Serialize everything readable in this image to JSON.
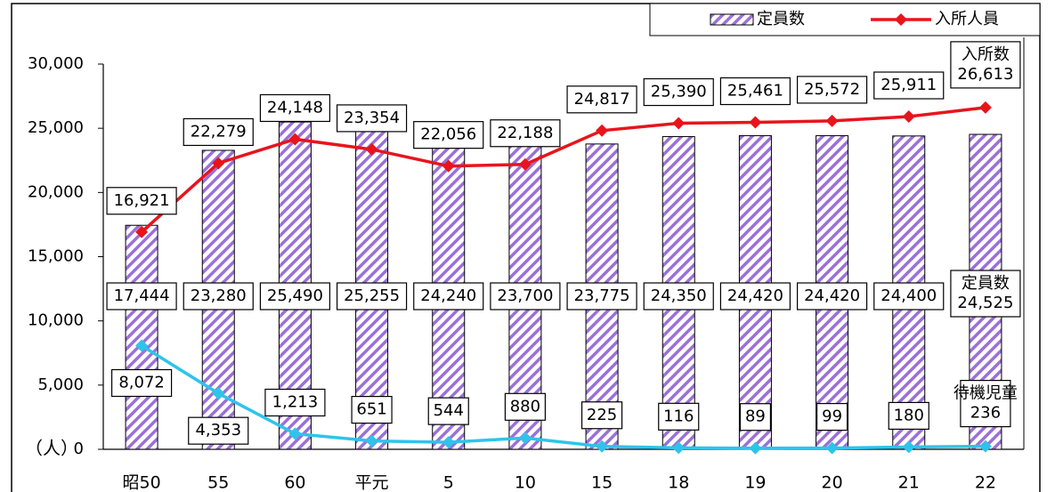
{
  "chart_data": {
    "type": "bar-line",
    "ylabel": "（人）",
    "categories": [
      "昭50",
      "55",
      "60",
      "平元",
      "5",
      "10",
      "15",
      "18",
      "19",
      "20",
      "21",
      "22"
    ],
    "series": [
      {
        "name": "定員数",
        "type": "bar",
        "color": "#9b70d8",
        "values": [
          17444,
          23280,
          25490,
          25255,
          24240,
          23700,
          23775,
          24350,
          24420,
          24420,
          24400,
          24525
        ],
        "value_labels": [
          "17,444",
          "23,280",
          "25,490",
          "25,255",
          "24,240",
          "23,700",
          "23,775",
          "24,350",
          "24,420",
          "24,420",
          "24,400",
          "24,525"
        ]
      },
      {
        "name": "入所人員",
        "type": "line",
        "color": "#e8141c",
        "values": [
          16921,
          22279,
          24148,
          23354,
          22056,
          22188,
          24817,
          25390,
          25461,
          25572,
          25911,
          26613
        ],
        "value_labels": [
          "16,921",
          "22,279",
          "24,148",
          "23,354",
          "22,056",
          "22,188",
          "24,817",
          "25,390",
          "25,461",
          "25,572",
          "25,911",
          "26,613"
        ]
      },
      {
        "type": "line",
        "color": "#2ec4ea",
        "values": [
          8072,
          4353,
          1213,
          651,
          544,
          880,
          225,
          116,
          89,
          99,
          180,
          236
        ],
        "value_labels": [
          "8,072",
          "4,353",
          "1,213",
          "651",
          "544",
          "880",
          "225",
          "116",
          "89",
          "99",
          "180",
          "236"
        ]
      }
    ],
    "annotations": [
      {
        "text": "入所数",
        "series": 1
      },
      {
        "text": "定員数",
        "series": 0
      },
      {
        "text": "待機児童",
        "series": 2
      }
    ],
    "ylim": [
      0,
      30000
    ],
    "yticks": [
      0,
      {
        "value": 5000,
        "label": "5,000"
      },
      {
        "value": 10000,
        "label": "10,000"
      },
      {
        "value": 15000,
        "label": "15,000"
      },
      {
        "value": 20000,
        "label": "20,000"
      },
      {
        "value": 25000,
        "label": "25,000"
      },
      {
        "value": 30000,
        "label": "30,000"
      }
    ],
    "grid": false,
    "legend": "top-right"
  }
}
